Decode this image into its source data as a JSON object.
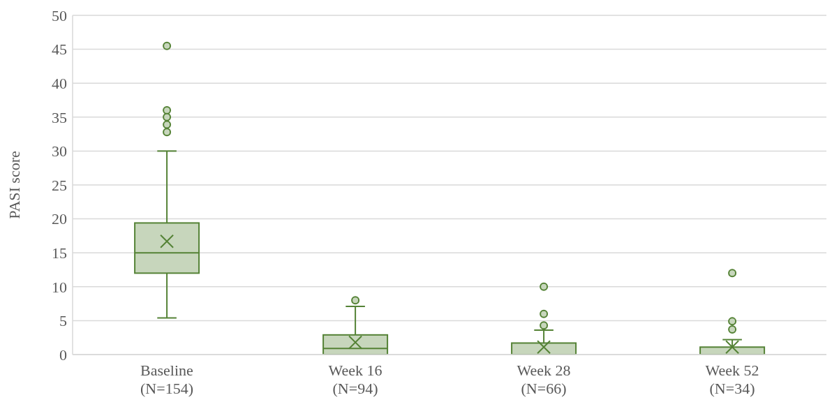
{
  "chart_data": {
    "type": "box",
    "ylabel": "PASI score",
    "categories": [
      "Baseline\n(N=154)",
      "Week 16\n(N=94)",
      "Week 28\n(N=66)",
      "Week 52\n(N=34)"
    ],
    "color": "#548235",
    "boxes": [
      {
        "low": 5.4,
        "q1": 12,
        "median": 15,
        "q3": 19.4,
        "high": 30,
        "mean": 16.7,
        "outliers": [
          45.5,
          36,
          35,
          33.9,
          32.8
        ]
      },
      {
        "low": 0,
        "q1": 0,
        "median": 0.9,
        "q3": 2.9,
        "high": 7.1,
        "mean": 1.8,
        "outliers": [
          8
        ]
      },
      {
        "low": 0,
        "q1": 0,
        "median": 0,
        "q3": 1.7,
        "high": 3.6,
        "mean": 1.1,
        "outliers": [
          10,
          6,
          4.3
        ]
      },
      {
        "low": 0,
        "q1": 0,
        "median": 0,
        "q3": 1.1,
        "high": 2.2,
        "mean": 1.1,
        "outliers": [
          12,
          4.9,
          3.7
        ]
      }
    ],
    "ylim": [
      0,
      50
    ],
    "yticks": [
      0,
      5,
      10,
      15,
      20,
      25,
      30,
      35,
      40,
      45,
      50
    ],
    "grid": "y"
  }
}
